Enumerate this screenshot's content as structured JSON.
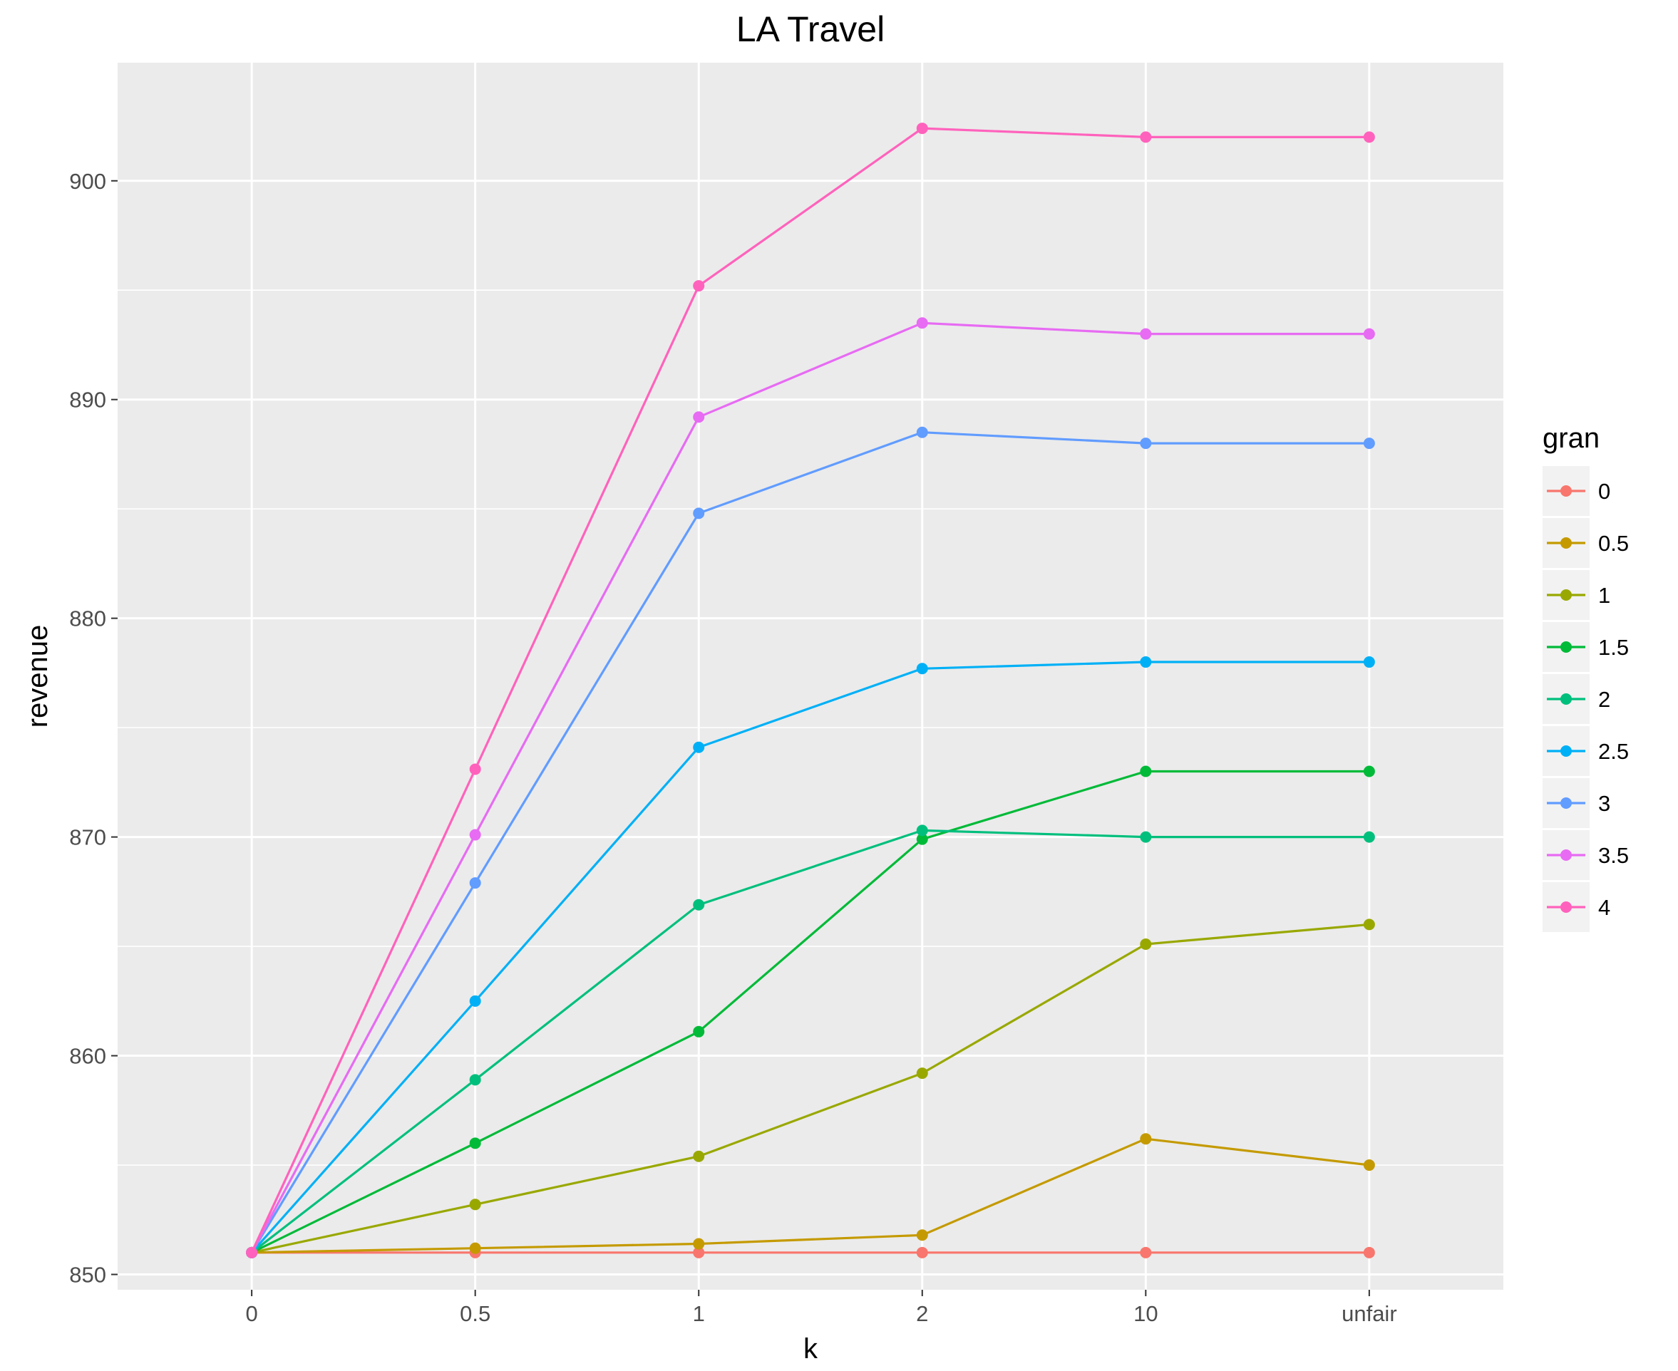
{
  "chart_data": {
    "type": "line",
    "title": "LA Travel",
    "xlabel": "k",
    "ylabel": "revenue",
    "categories": [
      "0",
      "0.5",
      "1",
      "2",
      "10",
      "unfair"
    ],
    "y_ticks": [
      850,
      860,
      870,
      880,
      890,
      900
    ],
    "ylim": [
      849.3,
      905.4
    ],
    "grid": true,
    "legend": {
      "title": "gran",
      "position": "right"
    },
    "series": [
      {
        "name": "0",
        "color": "#F8766D",
        "values": [
          851.0,
          851.0,
          851.0,
          851.0,
          851.0,
          851.0
        ]
      },
      {
        "name": "0.5",
        "color": "#C49A00",
        "values": [
          851.0,
          851.2,
          851.4,
          851.8,
          856.2,
          855.0
        ]
      },
      {
        "name": "1",
        "color": "#99A800",
        "values": [
          851.0,
          853.2,
          855.4,
          859.2,
          865.1,
          866.0
        ]
      },
      {
        "name": "1.5",
        "color": "#00BA38",
        "values": [
          851.0,
          856.0,
          861.1,
          869.9,
          873.0,
          873.0
        ]
      },
      {
        "name": "2",
        "color": "#00BF7D",
        "values": [
          851.0,
          858.9,
          866.9,
          870.3,
          870.0,
          870.0
        ]
      },
      {
        "name": "2.5",
        "color": "#00B0F6",
        "values": [
          851.0,
          862.5,
          874.1,
          877.7,
          878.0,
          878.0
        ]
      },
      {
        "name": "3",
        "color": "#619CFF",
        "values": [
          851.0,
          867.9,
          884.8,
          888.5,
          888.0,
          888.0
        ]
      },
      {
        "name": "3.5",
        "color": "#E76BF3",
        "values": [
          851.0,
          870.1,
          889.2,
          893.5,
          893.0,
          893.0
        ]
      },
      {
        "name": "4",
        "color": "#FF62BC",
        "values": [
          851.0,
          873.1,
          895.2,
          902.4,
          902.0,
          902.0
        ]
      }
    ]
  }
}
